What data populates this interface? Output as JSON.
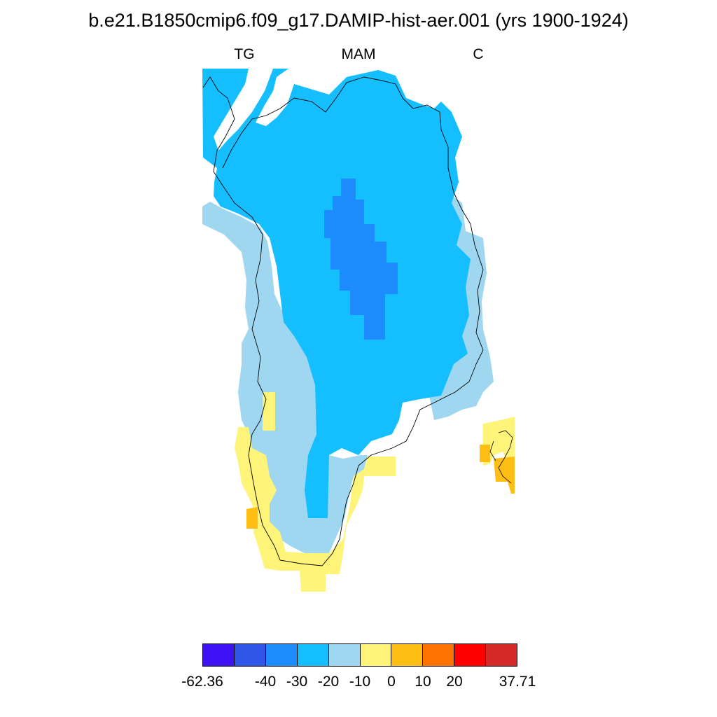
{
  "title": "b.e21.B1850cmip6.f09_g17.DAMIP-hist-aer.001 (yrs 1900-1924)",
  "subtitle_left": "TG",
  "subtitle_center": "MAM",
  "subtitle_right": "C",
  "colors": {
    "bin_minus40_minus30": "#1e8cff",
    "bin_minus30_minus20": "#15bfff",
    "bin_minus20_minus10": "#a0d7f0",
    "bin_minus10_0": "#fff47a",
    "bin_0_10": "#ffbe14",
    "coastline": "#000000"
  },
  "colorbar": {
    "colors": [
      "#3f12f5",
      "#2f55e7",
      "#1e8cff",
      "#15bfff",
      "#a0d7f0",
      "#fff47a",
      "#ffbe14",
      "#ff7300",
      "#ff0000",
      "#d62a2a"
    ],
    "labels": [
      "-62.36",
      "-40",
      "-30",
      "-20",
      "-10",
      "0",
      "10",
      "20",
      "37.71"
    ]
  }
}
